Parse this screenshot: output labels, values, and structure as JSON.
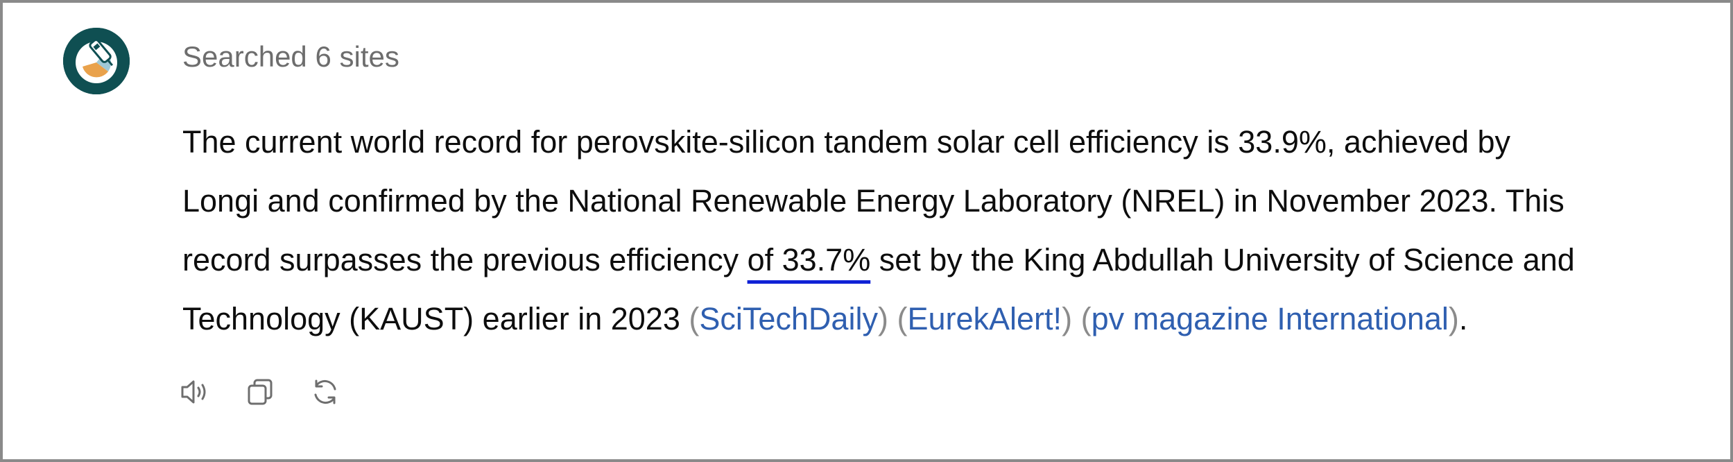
{
  "assistant": {
    "avatar_icon": "gpt-logo-icon",
    "avatar_bg": "#0f4f52"
  },
  "search_status": "Searched 6 sites",
  "answer": {
    "line1": "The current world record for perovskite-silicon tandem solar cell efficiency is 33.9%, achieved by",
    "line2": "Longi and confirmed by the National Renewable Energy Laboratory (NREL) in November 2023. This",
    "line3_pre": "record surpasses the previous efficiency ",
    "line3_highlight": "of 33.7%",
    "line3_post": " set by the King Abdullah University of Science and",
    "line4_pre": "Technology (KAUST) earlier in 2023 ",
    "citations": [
      "SciTechDaily",
      "EurekAlert!",
      "pv magazine International"
    ],
    "open_paren": "(",
    "close_paren": ")",
    "end_period": "."
  },
  "actions": [
    {
      "icon": "read-aloud-icon"
    },
    {
      "icon": "copy-icon"
    },
    {
      "icon": "regenerate-icon"
    }
  ],
  "colors": {
    "citation_link": "#2f5fb0",
    "highlight_underline": "#1022d6",
    "border": "#8a8a8a"
  }
}
